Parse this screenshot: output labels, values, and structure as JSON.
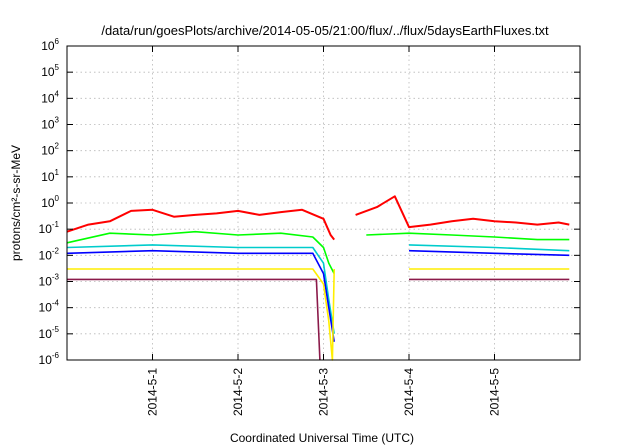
{
  "chart_data": {
    "type": "line",
    "title": "/data/run/goesPlots/archive/2014-05-05/21:00/flux/../flux/5daysEarthFluxes.txt",
    "xlabel": "Coordinated Universal Time (UTC)",
    "ylabel": "protons/cm²-s-sr-MeV",
    "y_scale": "log",
    "ylim": [
      "1e-6",
      "1e6"
    ],
    "xlim": [
      "2014-04-30 00:00",
      "2014-05-06 00:00"
    ],
    "x_ticks": [
      "2014-5-1",
      "2014-5-2",
      "2014-5-3",
      "2014-5-4",
      "2014-5-5"
    ],
    "y_ticks": [
      "1e-6",
      "1e-5",
      "1e-4",
      "1e-3",
      "1e-2",
      "1e-1",
      "1e0",
      "1e1",
      "1e2",
      "1e3",
      "1e4",
      "1e5",
      "1e6"
    ],
    "grid": true,
    "data_gap": [
      "2014-05-03 03:00",
      "2014-05-03 03:00"
    ],
    "series": [
      {
        "color": "#ff0000",
        "points": [
          [
            "2014-04-30 00:00",
            0.08
          ],
          [
            "2014-04-30 06:00",
            0.15
          ],
          [
            "2014-04-30 12:00",
            0.2
          ],
          [
            "2014-04-30 18:00",
            0.5
          ],
          [
            "2014-05-01 00:00",
            0.55
          ],
          [
            "2014-05-01 06:00",
            0.3
          ],
          [
            "2014-05-01 12:00",
            0.35
          ],
          [
            "2014-05-01 18:00",
            0.4
          ],
          [
            "2014-05-02 00:00",
            0.5
          ],
          [
            "2014-05-02 06:00",
            0.35
          ],
          [
            "2014-05-02 12:00",
            0.45
          ],
          [
            "2014-05-02 18:00",
            0.55
          ],
          [
            "2014-05-03 00:00",
            0.25
          ],
          [
            "2014-05-03 02:00",
            0.06
          ],
          [
            "2014-05-03 03:00",
            0.04
          ],
          [
            "2014-05-03 03:00",
            0.1
          ],
          [
            "2014-05-03 09:00",
            0.35
          ],
          [
            "2014-05-03 15:00",
            0.7
          ],
          [
            "2014-05-03 20:00",
            1.8
          ],
          [
            "2014-05-04 00:00",
            0.12
          ],
          [
            "2014-05-04 06:00",
            0.15
          ],
          [
            "2014-05-04 12:00",
            0.2
          ],
          [
            "2014-05-04 18:00",
            0.25
          ],
          [
            "2014-05-05 00:00",
            0.2
          ],
          [
            "2014-05-05 06:00",
            0.18
          ],
          [
            "2014-05-05 12:00",
            0.15
          ],
          [
            "2014-05-05 18:00",
            0.18
          ],
          [
            "2014-05-05 21:00",
            0.15
          ]
        ]
      },
      {
        "color": "#00ff00",
        "points": [
          [
            "2014-04-30 00:00",
            0.03
          ],
          [
            "2014-04-30 12:00",
            0.07
          ],
          [
            "2014-05-01 00:00",
            0.06
          ],
          [
            "2014-05-01 12:00",
            0.08
          ],
          [
            "2014-05-02 00:00",
            0.06
          ],
          [
            "2014-05-02 12:00",
            0.07
          ],
          [
            "2014-05-02 21:00",
            0.05
          ],
          [
            "2014-05-03 00:00",
            0.02
          ],
          [
            "2014-05-03 01:30",
            0.005
          ],
          [
            "2014-05-03 03:00",
            0.002
          ],
          [
            "2014-05-03 03:00",
            0.05
          ],
          [
            "2014-05-03 12:00",
            0.06
          ],
          [
            "2014-05-04 00:00",
            0.07
          ],
          [
            "2014-05-04 12:00",
            0.06
          ],
          [
            "2014-05-05 00:00",
            0.05
          ],
          [
            "2014-05-05 12:00",
            0.04
          ],
          [
            "2014-05-05 21:00",
            0.04
          ]
        ]
      },
      {
        "color": "#00cccc",
        "points": [
          [
            "2014-04-30 00:00",
            0.02
          ],
          [
            "2014-05-01 00:00",
            0.025
          ],
          [
            "2014-05-02 00:00",
            0.02
          ],
          [
            "2014-05-02 21:00",
            0.02
          ],
          [
            "2014-05-03 00:00",
            0.005
          ],
          [
            "2014-05-03 01:30",
            0.0002
          ],
          [
            "2014-05-03 03:00",
            1e-05
          ],
          [
            "2014-05-03 03:00",
            0.02
          ],
          [
            "2014-05-04 00:00",
            0.025
          ],
          [
            "2014-05-05 00:00",
            0.02
          ],
          [
            "2014-05-05 21:00",
            0.015
          ]
        ]
      },
      {
        "color": "#0000ff",
        "points": [
          [
            "2014-04-30 00:00",
            0.012
          ],
          [
            "2014-05-01 00:00",
            0.015
          ],
          [
            "2014-05-02 00:00",
            0.012
          ],
          [
            "2014-05-02 21:00",
            0.012
          ],
          [
            "2014-05-03 00:00",
            0.002
          ],
          [
            "2014-05-03 01:30",
            0.0001
          ],
          [
            "2014-05-03 03:00",
            5e-06
          ],
          [
            "2014-05-03 03:00",
            0.012
          ],
          [
            "2014-05-04 00:00",
            0.015
          ],
          [
            "2014-05-05 00:00",
            0.012
          ],
          [
            "2014-05-05 21:00",
            0.01
          ]
        ]
      },
      {
        "color": "#ffee00",
        "points": [
          [
            "2014-04-30 00:00",
            0.003
          ],
          [
            "2014-05-01 00:00",
            0.003
          ],
          [
            "2014-05-02 00:00",
            0.003
          ],
          [
            "2014-05-02 21:00",
            0.003
          ],
          [
            "2014-05-03 00:00",
            0.0008
          ],
          [
            "2014-05-03 01:30",
            3e-05
          ],
          [
            "2014-05-03 02:30",
            1e-06
          ],
          [
            "2014-05-03 03:00",
            0.003
          ],
          [
            "2014-05-04 00:00",
            0.003
          ],
          [
            "2014-05-05 00:00",
            0.003
          ],
          [
            "2014-05-05 21:00",
            0.003
          ]
        ]
      },
      {
        "color": "#8b1a4a",
        "points": [
          [
            "2014-04-30 00:00",
            0.0012
          ],
          [
            "2014-05-01 00:00",
            0.0012
          ],
          [
            "2014-05-02 00:00",
            0.0012
          ],
          [
            "2014-05-02 21:00",
            0.0012
          ],
          [
            "2014-05-02 22:00",
            0.0012
          ],
          [
            "2014-05-02 23:00",
            1e-06
          ],
          [
            "2014-05-03 03:00",
            0.0012
          ],
          [
            "2014-05-04 00:00",
            0.0012
          ],
          [
            "2014-05-05 00:00",
            0.0012
          ],
          [
            "2014-05-05 21:00",
            0.0012
          ]
        ]
      }
    ]
  }
}
